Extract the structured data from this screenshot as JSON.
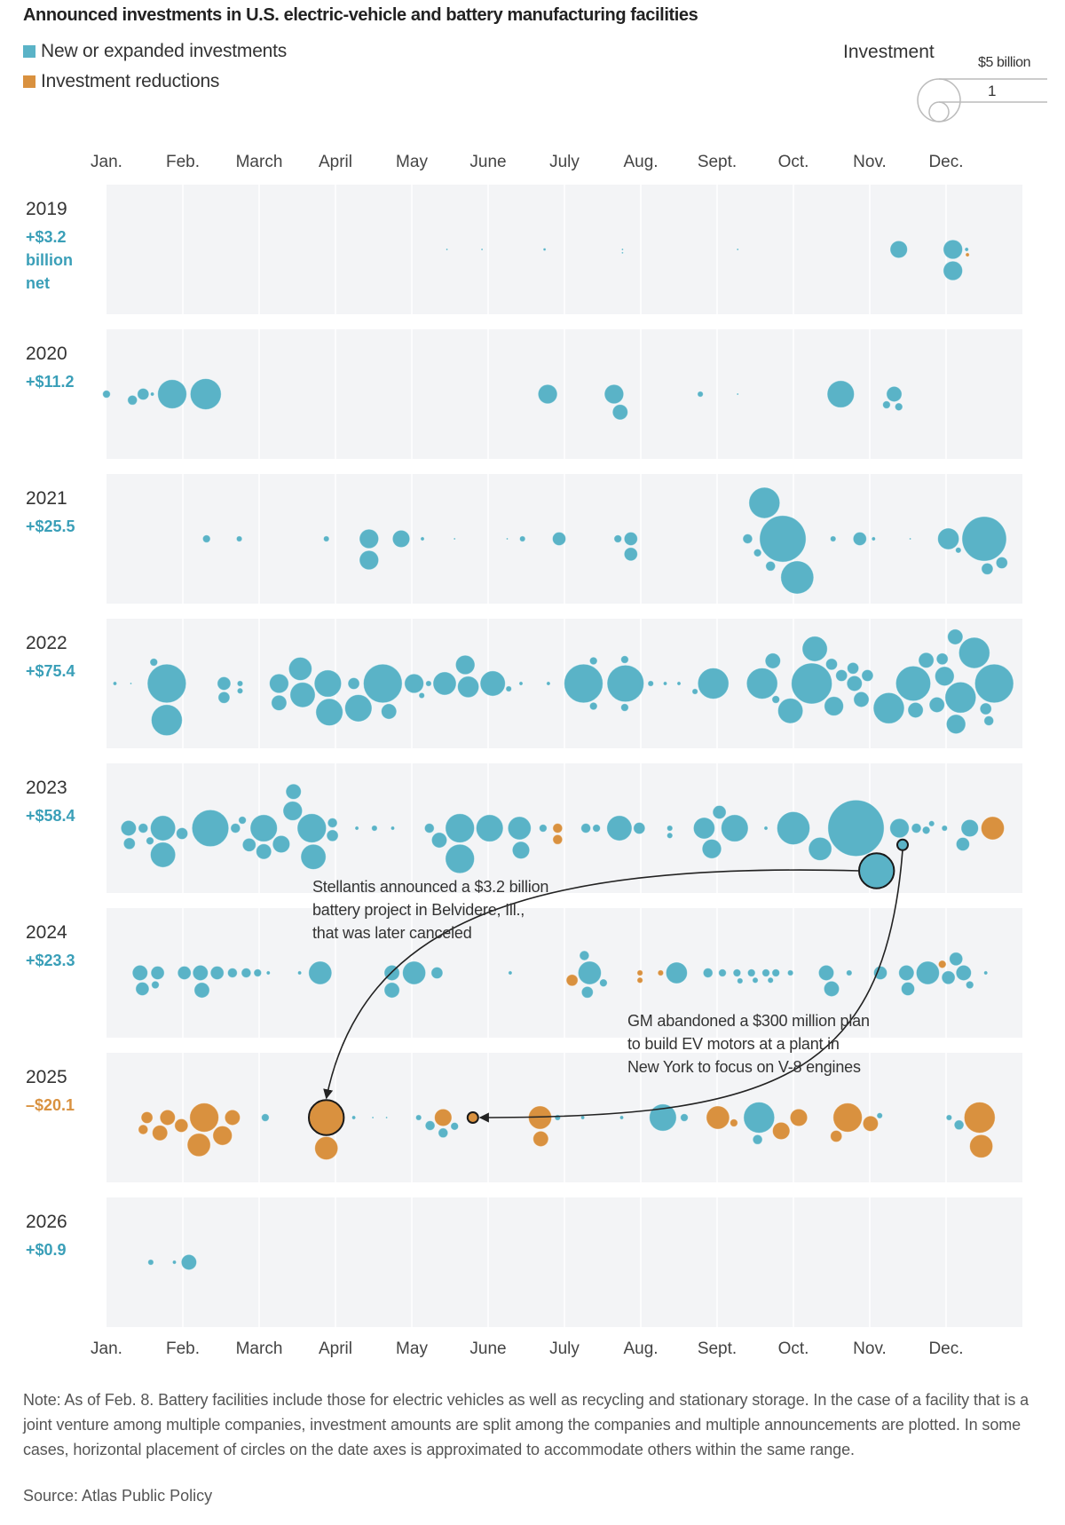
{
  "chart_data": {
    "type": "scatter",
    "subtype": "bubble-beeswarm",
    "title": "Announced investments in U.S. electric-vehicle and battery manufacturing facilities",
    "legend": [
      {
        "label": "New or expanded investments",
        "color": "#5ab3c7"
      },
      {
        "label": "Investment reductions",
        "color": "#d9913f"
      }
    ],
    "size_legend": {
      "title": "Investment",
      "big_label": "$5 billion",
      "big_value": 5,
      "small_label": "1",
      "small_value": 1
    },
    "months": [
      "Jan.",
      "Feb.",
      "March",
      "April",
      "May",
      "June",
      "July",
      "Aug.",
      "Sept.",
      "Oct.",
      "Nov.",
      "Dec."
    ],
    "value_units": "$ billion; negative = investment reduction; month = decimal month index from Jan. 1",
    "rows": [
      {
        "year": "2019",
        "net": "+$3.2 billion net",
        "net_sign": "pos",
        "bubbles": [
          [
            4.46,
            0.01
          ],
          [
            4.92,
            0.01
          ],
          [
            5.74,
            0.02
          ],
          [
            6.76,
            0.01
          ],
          [
            6.76,
            0.01
          ],
          [
            8.27,
            0.01
          ],
          [
            10.38,
            0.8
          ],
          [
            11.09,
            0.99
          ],
          [
            11.09,
            0.99
          ],
          [
            11.27,
            0.04
          ],
          [
            11.28,
            -0.04
          ]
        ]
      },
      {
        "year": "2020",
        "net": "+$11.2",
        "net_sign": "pos",
        "bubbles": [
          [
            0.0,
            0.16
          ],
          [
            0.34,
            0.25
          ],
          [
            0.48,
            0.36
          ],
          [
            0.6,
            0.04
          ],
          [
            0.86,
            2.22
          ],
          [
            1.3,
            2.53
          ],
          [
            5.78,
            0.99
          ],
          [
            6.65,
            0.99
          ],
          [
            6.73,
            0.63
          ],
          [
            7.78,
            0.09
          ],
          [
            8.27,
            0.01
          ],
          [
            9.62,
            1.94
          ],
          [
            10.22,
            0.16
          ],
          [
            10.38,
            0.16
          ],
          [
            10.32,
            0.63
          ]
        ]
      },
      {
        "year": "2021",
        "net": "+$25.5",
        "net_sign": "pos",
        "bubbles": [
          [
            1.31,
            0.16
          ],
          [
            1.74,
            0.09
          ],
          [
            2.88,
            0.09
          ],
          [
            3.44,
            0.99
          ],
          [
            3.44,
            0.99
          ],
          [
            3.86,
            0.8
          ],
          [
            4.14,
            0.04
          ],
          [
            4.56,
            0.01
          ],
          [
            5.25,
            0.01
          ],
          [
            5.45,
            0.09
          ],
          [
            5.93,
            0.48
          ],
          [
            6.7,
            0.16
          ],
          [
            6.87,
            0.48
          ],
          [
            6.87,
            0.48
          ],
          [
            8.62,
            2.53
          ],
          [
            9.05,
            2.85
          ],
          [
            8.86,
            5.69
          ],
          [
            8.4,
            0.25
          ],
          [
            8.53,
            0.16
          ],
          [
            8.7,
            0.25
          ],
          [
            9.52,
            0.09
          ],
          [
            9.87,
            0.48
          ],
          [
            10.05,
            0.04
          ],
          [
            10.53,
            0.01
          ],
          [
            11.03,
            1.2
          ],
          [
            11.5,
            5.22
          ],
          [
            11.54,
            0.36
          ],
          [
            11.73,
            0.36
          ],
          [
            11.16,
            0.09
          ]
        ]
      },
      {
        "year": "2022",
        "net": "+$75.4",
        "net_sign": "pos",
        "bubbles": [
          [
            0.11,
            0.04
          ],
          [
            0.32,
            0.01
          ],
          [
            0.79,
            2.53
          ],
          [
            0.79,
            3.95
          ],
          [
            0.62,
            0.16
          ],
          [
            1.54,
            0.36
          ],
          [
            1.54,
            0.48
          ],
          [
            1.75,
            0.09
          ],
          [
            1.75,
            0.09
          ],
          [
            2.26,
            0.99
          ],
          [
            2.26,
            0.63
          ],
          [
            2.54,
            1.42
          ],
          [
            2.57,
            1.67
          ],
          [
            2.9,
            1.94
          ],
          [
            2.92,
            1.94
          ],
          [
            3.3,
            1.94
          ],
          [
            3.24,
            0.36
          ],
          [
            3.62,
            3.95
          ],
          [
            3.7,
            0.63
          ],
          [
            4.03,
            0.99
          ],
          [
            4.13,
            0.09
          ],
          [
            4.22,
            0.09
          ],
          [
            4.43,
            1.42
          ],
          [
            4.74,
            1.2
          ],
          [
            4.7,
            0.99
          ],
          [
            5.06,
            1.67
          ],
          [
            5.27,
            0.09
          ],
          [
            5.43,
            0.04
          ],
          [
            5.79,
            0.04
          ],
          [
            6.25,
            3.95
          ],
          [
            6.38,
            0.16
          ],
          [
            6.38,
            0.16
          ],
          [
            6.8,
            3.57
          ],
          [
            6.79,
            0.16
          ],
          [
            6.79,
            0.16
          ],
          [
            7.13,
            0.09
          ],
          [
            7.32,
            0.04
          ],
          [
            7.5,
            0.04
          ],
          [
            7.71,
            0.09
          ],
          [
            7.95,
            2.53
          ],
          [
            8.59,
            2.53
          ],
          [
            8.73,
            0.63
          ],
          [
            8.96,
            1.67
          ],
          [
            9.24,
            4.36
          ],
          [
            8.77,
            0.16
          ],
          [
            9.28,
            1.67
          ],
          [
            9.53,
            0.99
          ],
          [
            9.5,
            0.36
          ],
          [
            9.63,
            0.36
          ],
          [
            9.8,
            0.63
          ],
          [
            9.78,
            0.36
          ],
          [
            9.89,
            0.63
          ],
          [
            9.97,
            0.36
          ],
          [
            10.25,
            2.53
          ],
          [
            10.57,
            3.2
          ],
          [
            10.6,
            0.63
          ],
          [
            10.74,
            0.63
          ],
          [
            10.88,
            0.63
          ],
          [
            10.98,
            0.99
          ],
          [
            11.12,
            0.63
          ],
          [
            11.13,
            0.99
          ],
          [
            11.19,
            2.53
          ],
          [
            11.37,
            2.53
          ],
          [
            11.63,
            3.95
          ],
          [
            10.95,
            0.36
          ],
          [
            11.52,
            0.36
          ],
          [
            11.56,
            0.25
          ]
        ]
      },
      {
        "year": "2023",
        "net": "+$58.4",
        "net_sign": "pos",
        "bubbles": [
          [
            0.29,
            0.63
          ],
          [
            0.3,
            0.36
          ],
          [
            0.48,
            0.25
          ],
          [
            0.57,
            0.16
          ],
          [
            0.74,
            1.67
          ],
          [
            0.74,
            1.67
          ],
          [
            0.99,
            0.36
          ],
          [
            1.36,
            3.57
          ],
          [
            1.69,
            0.25
          ],
          [
            1.78,
            0.16
          ],
          [
            1.87,
            0.48
          ],
          [
            2.06,
            1.94
          ],
          [
            2.06,
            0.63
          ],
          [
            2.29,
            0.8
          ],
          [
            2.44,
            0.99
          ],
          [
            2.45,
            0.63
          ],
          [
            2.71,
            1.67
          ],
          [
            2.69,
            2.22
          ],
          [
            2.96,
            0.36
          ],
          [
            2.96,
            0.25
          ],
          [
            3.28,
            0.04
          ],
          [
            3.51,
            0.09
          ],
          [
            3.75,
            0.04
          ],
          [
            4.23,
            0.25
          ],
          [
            4.36,
            0.63
          ],
          [
            4.63,
            2.22
          ],
          [
            4.63,
            2.22
          ],
          [
            5.02,
            1.94
          ],
          [
            5.41,
            1.42
          ],
          [
            5.43,
            0.8
          ],
          [
            5.72,
            0.16
          ],
          [
            5.91,
            -0.25
          ],
          [
            5.91,
            -0.25
          ],
          [
            6.28,
            0.25
          ],
          [
            6.42,
            0.16
          ],
          [
            6.72,
            1.67
          ],
          [
            6.98,
            0.36
          ],
          [
            7.38,
            0.09
          ],
          [
            7.38,
            0.09
          ],
          [
            7.93,
            0.99
          ],
          [
            7.83,
            1.2
          ],
          [
            8.23,
            1.94
          ],
          [
            8.03,
            0.48
          ],
          [
            8.64,
            0.04
          ],
          [
            9.0,
            2.85
          ],
          [
            9.35,
            1.42
          ],
          [
            9.82,
            8.3
          ],
          [
            10.09,
            3.2,
            "stellantis"
          ],
          [
            10.39,
            0.99
          ],
          [
            10.43,
            0.3,
            "gm"
          ],
          [
            10.61,
            0.25
          ],
          [
            10.74,
            0.16
          ],
          [
            10.81,
            0.09
          ],
          [
            10.98,
            0.09
          ],
          [
            11.22,
            0.48
          ],
          [
            11.31,
            0.8
          ],
          [
            11.61,
            -1.42
          ]
        ]
      },
      {
        "year": "2024",
        "net": "+$23.3",
        "net_sign": "pos",
        "bubbles": [
          [
            0.44,
            0.63
          ],
          [
            0.47,
            0.48
          ],
          [
            0.64,
            0.16
          ],
          [
            0.67,
            0.48
          ],
          [
            1.02,
            0.48
          ],
          [
            1.23,
            0.63
          ],
          [
            1.25,
            0.63
          ],
          [
            1.45,
            0.48
          ],
          [
            1.65,
            0.25
          ],
          [
            1.83,
            0.25
          ],
          [
            1.98,
            0.16
          ],
          [
            2.12,
            0.04
          ],
          [
            2.53,
            0.04
          ],
          [
            2.8,
            1.42
          ],
          [
            3.74,
            0.63
          ],
          [
            3.74,
            0.63
          ],
          [
            4.03,
            1.42
          ],
          [
            4.33,
            0.36
          ],
          [
            5.29,
            0.04
          ],
          [
            6.1,
            -0.36
          ],
          [
            6.26,
            0.25
          ],
          [
            6.33,
            1.42
          ],
          [
            6.3,
            0.36
          ],
          [
            6.51,
            0.16
          ],
          [
            6.99,
            -0.09
          ],
          [
            6.99,
            -0.09
          ],
          [
            7.26,
            -0.09
          ],
          [
            7.47,
            1.2
          ],
          [
            7.88,
            0.25
          ],
          [
            8.07,
            0.16
          ],
          [
            8.26,
            0.16
          ],
          [
            8.45,
            0.16
          ],
          [
            8.64,
            0.16
          ],
          [
            8.77,
            0.16
          ],
          [
            8.96,
            0.09
          ],
          [
            8.3,
            0.09
          ],
          [
            8.5,
            0.09
          ],
          [
            8.7,
            0.09
          ],
          [
            9.43,
            0.63
          ],
          [
            9.5,
            0.63
          ],
          [
            9.73,
            0.09
          ],
          [
            10.14,
            0.48
          ],
          [
            10.48,
            0.63
          ],
          [
            10.5,
            0.48
          ],
          [
            10.76,
            1.42
          ],
          [
            10.95,
            -0.16
          ],
          [
            11.03,
            0.48
          ],
          [
            11.13,
            0.48
          ],
          [
            11.23,
            0.63
          ],
          [
            11.31,
            0.16
          ],
          [
            11.52,
            0.04
          ]
        ]
      },
      {
        "year": "2025",
        "net": "–$20.1",
        "net_sign": "neg",
        "bubbles": [
          [
            0.53,
            -0.36
          ],
          [
            0.48,
            -0.25
          ],
          [
            0.8,
            -0.63
          ],
          [
            0.7,
            -0.63
          ],
          [
            0.98,
            -0.48
          ],
          [
            1.21,
            -1.42
          ],
          [
            1.28,
            -2.22
          ],
          [
            1.52,
            -0.99
          ],
          [
            1.65,
            -0.63
          ],
          [
            2.08,
            0.16
          ],
          [
            2.88,
            -1.42
          ],
          [
            2.88,
            -3.2,
            "stellantis"
          ],
          [
            3.24,
            0.04
          ],
          [
            3.49,
            0.01
          ],
          [
            3.67,
            0.01
          ],
          [
            4.09,
            0.09
          ],
          [
            4.24,
            0.25
          ],
          [
            4.41,
            0.25
          ],
          [
            4.41,
            -0.8
          ],
          [
            4.56,
            0.16
          ],
          [
            4.8,
            -0.3,
            "gm"
          ],
          [
            5.68,
            -1.42
          ],
          [
            5.69,
            -0.63
          ],
          [
            5.91,
            0.09
          ],
          [
            6.24,
            0.04
          ],
          [
            6.75,
            0.04
          ],
          [
            7.29,
            1.94
          ],
          [
            7.57,
            0.16
          ],
          [
            8.01,
            -1.42
          ],
          [
            8.22,
            -0.16
          ],
          [
            8.55,
            2.53
          ],
          [
            8.53,
            0.25
          ],
          [
            8.84,
            -0.8
          ],
          [
            9.07,
            -0.8
          ],
          [
            9.71,
            -2.22
          ],
          [
            9.56,
            -0.36
          ],
          [
            10.01,
            -0.63
          ],
          [
            10.13,
            0.09
          ],
          [
            11.04,
            0.09
          ],
          [
            11.17,
            0.25
          ],
          [
            11.44,
            -2.53
          ],
          [
            11.46,
            -1.42
          ]
        ]
      },
      {
        "year": "2026",
        "net": "+$0.9",
        "net_sign": "pos",
        "bubbles": [
          [
            0.58,
            0.09
          ],
          [
            0.89,
            0.04
          ],
          [
            1.08,
            0.63
          ]
        ]
      }
    ],
    "annotations": [
      {
        "id": "stellantis",
        "text": [
          "Stellantis announced a $3.2 billion",
          "battery project in Belvidere, Ill.,",
          "that was later canceled"
        ]
      },
      {
        "id": "gm",
        "text": [
          "GM abandoned a $300 million plan",
          "to build EV motors at a plant in",
          "New York to focus on V-8 engines"
        ]
      }
    ],
    "note": "Note: As of Feb. 8. Battery facilities include those for electric vehicles as well as recycling and stationary storage. In the case of a facility that is a joint venture among multiple companies, investment amounts are split among the companies and multiple announcements are plotted. In some cases, horizontal placement of circles on the date axes is approximated to accommodate others within the same range.",
    "source": "Source: Atlas Public Policy"
  }
}
